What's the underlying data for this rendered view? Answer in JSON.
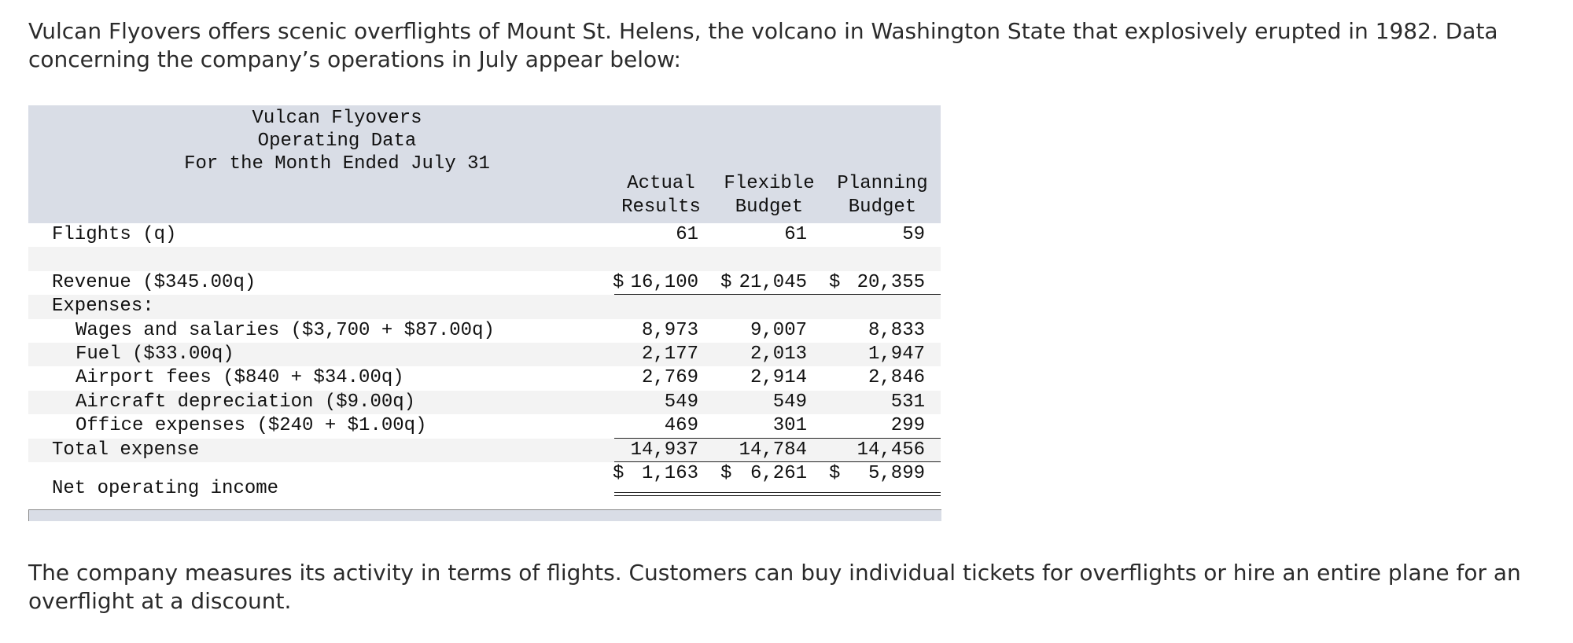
{
  "intro": "Vulcan Flyovers offers scenic overflights of Mount St. Helens, the volcano in Washington State that explosively erupted in 1982. Data concerning the company’s operations in July appear below:",
  "table": {
    "title": [
      "Vulcan Flyovers",
      "Operating Data",
      "For the Month Ended July 31"
    ],
    "columns": [
      [
        "Actual",
        "Results"
      ],
      [
        "Flexible",
        "Budget"
      ],
      [
        "Planning",
        "Budget"
      ]
    ],
    "flights": {
      "label": "Flights (q)",
      "values": [
        "61",
        "61",
        "59"
      ]
    },
    "revenue": {
      "label": "Revenue ($345.00q)",
      "currency": "$",
      "values": [
        "16,100",
        "21,045",
        "20,355"
      ]
    },
    "expenses": {
      "label": "Expenses:",
      "items": [
        {
          "label": "Wages and salaries ($3,700 + $87.00q)",
          "values": [
            "8,973",
            "9,007",
            "8,833"
          ]
        },
        {
          "label": "Fuel ($33.00q)",
          "values": [
            "2,177",
            "2,013",
            "1,947"
          ]
        },
        {
          "label": "Airport fees ($840 + $34.00q)",
          "values": [
            "2,769",
            "2,914",
            "2,846"
          ]
        },
        {
          "label": "Aircraft depreciation ($9.00q)",
          "values": [
            "549",
            "549",
            "531"
          ]
        },
        {
          "label": "Office expenses ($240 + $1.00q)",
          "values": [
            "469",
            "301",
            "299"
          ]
        }
      ]
    },
    "total_expense": {
      "label": "Total expense",
      "values": [
        "14,937",
        "14,784",
        "14,456"
      ]
    },
    "net_operating_income": {
      "label": "Net operating income",
      "currency": "$",
      "values": [
        "1,163",
        "6,261",
        "5,899"
      ]
    }
  },
  "outro": "The company measures its activity in terms of flights. Customers can buy individual tickets for overflights or hire an entire plane for an overflight at a discount."
}
